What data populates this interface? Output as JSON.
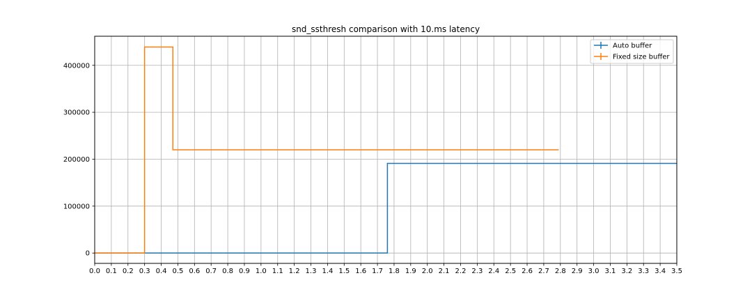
{
  "chart_data": {
    "type": "line",
    "title": "snd_ssthresh comparison with 10.ms latency",
    "xlabel": "",
    "ylabel": "",
    "xlim": [
      0.0,
      3.5
    ],
    "ylim": [
      -22000,
      462000
    ],
    "grid": true,
    "legend_position": "top-right",
    "x_ticks": [
      "0.0",
      "0.1",
      "0.2",
      "0.3",
      "0.4",
      "0.5",
      "0.6",
      "0.7",
      "0.8",
      "0.9",
      "1.0",
      "1.1",
      "1.2",
      "1.3",
      "1.4",
      "1.5",
      "1.6",
      "1.7",
      "1.8",
      "1.9",
      "2.0",
      "2.1",
      "2.2",
      "2.3",
      "2.4",
      "2.5",
      "2.6",
      "2.7",
      "2.8",
      "2.9",
      "3.0",
      "3.1",
      "3.2",
      "3.3",
      "3.4",
      "3.5"
    ],
    "y_ticks": [
      "0",
      "100000",
      "200000",
      "300000",
      "400000"
    ],
    "series": [
      {
        "name": "Auto buffer",
        "color": "#1f77b4",
        "style": "steps-post",
        "x": [
          0.0,
          1.76,
          3.5
        ],
        "y": [
          0,
          191000,
          191000
        ]
      },
      {
        "name": "Fixed size buffer",
        "color": "#ff7f0e",
        "style": "steps-post",
        "x": [
          0.0,
          0.3,
          0.47,
          2.79
        ],
        "y": [
          0,
          439000,
          220000,
          220000
        ]
      }
    ]
  }
}
